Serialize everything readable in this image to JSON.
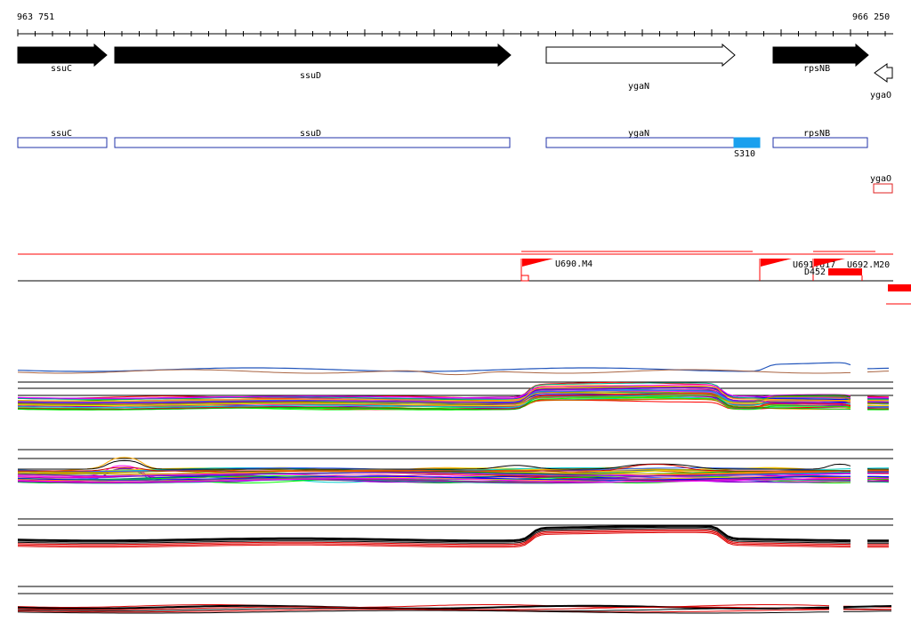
{
  "ruler": {
    "start_label": "963 751",
    "end_label": "966 250"
  },
  "genes": [
    {
      "name": "ssuC",
      "strand": "+",
      "filled": true
    },
    {
      "name": "ssuD",
      "strand": "+",
      "filled": true
    },
    {
      "name": "ygaN",
      "strand": "+",
      "filled": false
    },
    {
      "name": "rpsNB",
      "strand": "+",
      "filled": true
    },
    {
      "name": "ygaO",
      "strand": "-",
      "filled": false
    }
  ],
  "annotations": [
    {
      "name": "ssuC"
    },
    {
      "name": "ssuD"
    },
    {
      "name": "ygaN"
    },
    {
      "name": "rpsNB"
    },
    {
      "name": "ygaO"
    }
  ],
  "site": {
    "label": "S310",
    "color": "#1aa0ee"
  },
  "features": [
    {
      "label": "U690.M4"
    },
    {
      "label": "U691.U17"
    },
    {
      "label": "U692.M20"
    },
    {
      "label": "D452"
    }
  ],
  "colors": {
    "gene_fill": "#000000",
    "annotation_border": "#2233aa",
    "small_box_border": "#e02020",
    "feature_red": "#ff0000"
  }
}
